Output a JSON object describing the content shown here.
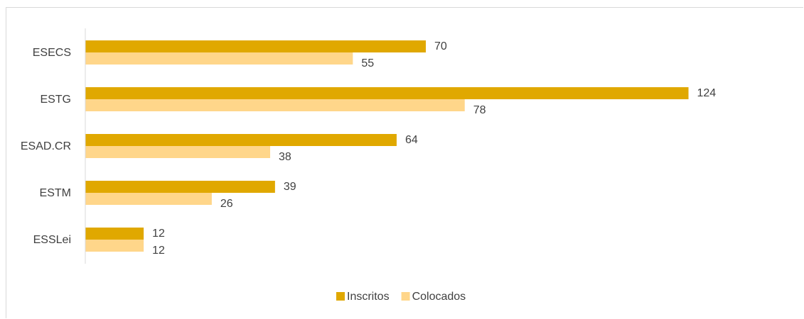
{
  "chart_data": {
    "type": "bar",
    "orientation": "horizontal",
    "categories": [
      "ESECS",
      "ESTG",
      "ESAD.CR",
      "ESTM",
      "ESSLei"
    ],
    "series": [
      {
        "name": "Inscritos",
        "color": "#E0A800",
        "values": [
          70,
          124,
          64,
          39,
          12
        ]
      },
      {
        "name": "Colocados",
        "color": "#FFD68A",
        "values": [
          55,
          78,
          38,
          26,
          12
        ]
      }
    ],
    "data_labels": true,
    "xlim": [
      0,
      140
    ],
    "grid": false,
    "legend": "bottom"
  }
}
